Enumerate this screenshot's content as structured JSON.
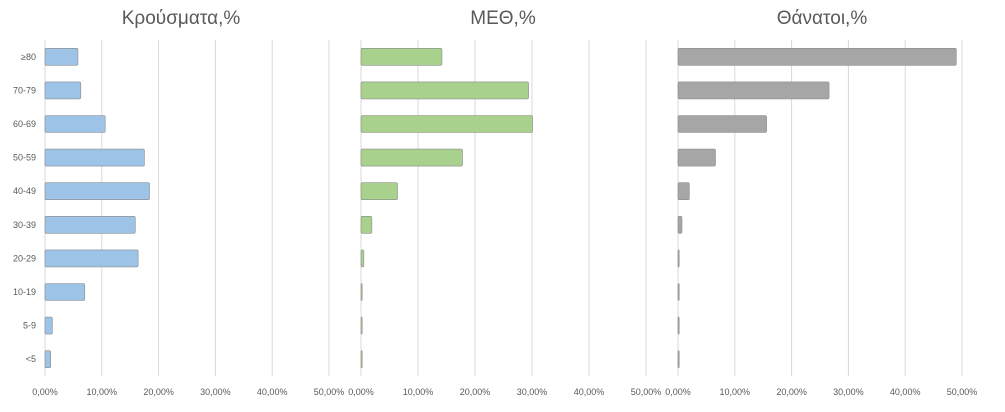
{
  "chart_data": [
    {
      "type": "bar",
      "orientation": "horizontal",
      "title": "Κρούσματα,%",
      "categories": [
        "≥80",
        "70-79",
        "60-69",
        "50-59",
        "40-49",
        "30-39",
        "20-29",
        "10-19",
        "5-9",
        "<5"
      ],
      "values": [
        5.8,
        6.3,
        10.6,
        17.5,
        18.4,
        15.9,
        16.4,
        7.0,
        1.3,
        1.0
      ],
      "xlim": [
        0,
        50
      ],
      "xticks": [
        "0,00%",
        "10,00%",
        "20,00%",
        "30,00%",
        "40,00%",
        "50,00%"
      ],
      "color": "#9dc3e6",
      "grid": true
    },
    {
      "type": "bar",
      "orientation": "horizontal",
      "title": "ΜΕΘ,%",
      "categories": [
        "≥80",
        "70-79",
        "60-69",
        "50-59",
        "40-49",
        "30-39",
        "20-29",
        "10-19",
        "5-9",
        "<5"
      ],
      "values": [
        14.2,
        29.4,
        30.1,
        17.8,
        6.4,
        1.9,
        0.5,
        0.1,
        0.1,
        0.1
      ],
      "xlim": [
        0,
        50
      ],
      "xticks": [
        "0,00%",
        "10,00%",
        "20,00%",
        "30,00%",
        "40,00%",
        "50,00%"
      ],
      "color": "#a9d18e",
      "grid": true
    },
    {
      "type": "bar",
      "orientation": "horizontal",
      "title": "Θάνατοι,%",
      "categories": [
        "≥80",
        "70-79",
        "60-69",
        "50-59",
        "40-49",
        "30-39",
        "20-29",
        "10-19",
        "5-9",
        "<5"
      ],
      "values": [
        49.0,
        26.6,
        15.6,
        6.6,
        2.0,
        0.7,
        0.2,
        0.1,
        0.0,
        0.0
      ],
      "xlim": [
        0,
        50
      ],
      "xticks": [
        "0,00%",
        "10,00%",
        "20,00%",
        "30,00%",
        "40,00%",
        "50,00%"
      ],
      "color": "#a6a6a6",
      "grid": true
    }
  ]
}
